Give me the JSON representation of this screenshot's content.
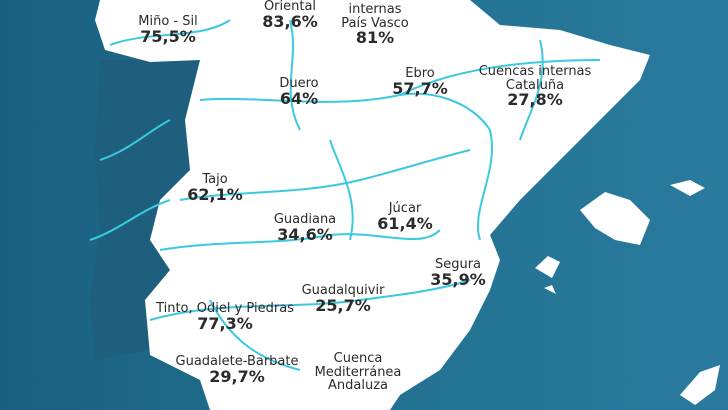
{
  "colors": {
    "land": "#ffffff",
    "rivers": "#3cc8e0",
    "ocean": "#21708f",
    "portugal": "#1d5f7c",
    "text": "#2b2b2b"
  },
  "basins": [
    {
      "name": "Miño - Sil",
      "value": "75,5%"
    },
    {
      "name": "Oriental",
      "value": "83,6%"
    },
    {
      "name": "internas País Vasco",
      "value": "81%"
    },
    {
      "name": "Duero",
      "value": "64%"
    },
    {
      "name": "Ebro",
      "value": "57,7%"
    },
    {
      "name": "Cuencas internas Cataluña",
      "value": "27,8%"
    },
    {
      "name": "Tajo",
      "value": "62,1%"
    },
    {
      "name": "Guadiana",
      "value": "34,6%"
    },
    {
      "name": "Júcar",
      "value": "61,4%"
    },
    {
      "name": "Segura",
      "value": "35,9%"
    },
    {
      "name": "Guadalquivir",
      "value": "25,7%"
    },
    {
      "name": "Tinto, Odiel y Piedras",
      "value": "77,3%"
    },
    {
      "name": "Guadalete-Barbate",
      "value": "29,7%"
    },
    {
      "name": "Cuenca Mediterránea Andaluza",
      "value": ""
    }
  ]
}
